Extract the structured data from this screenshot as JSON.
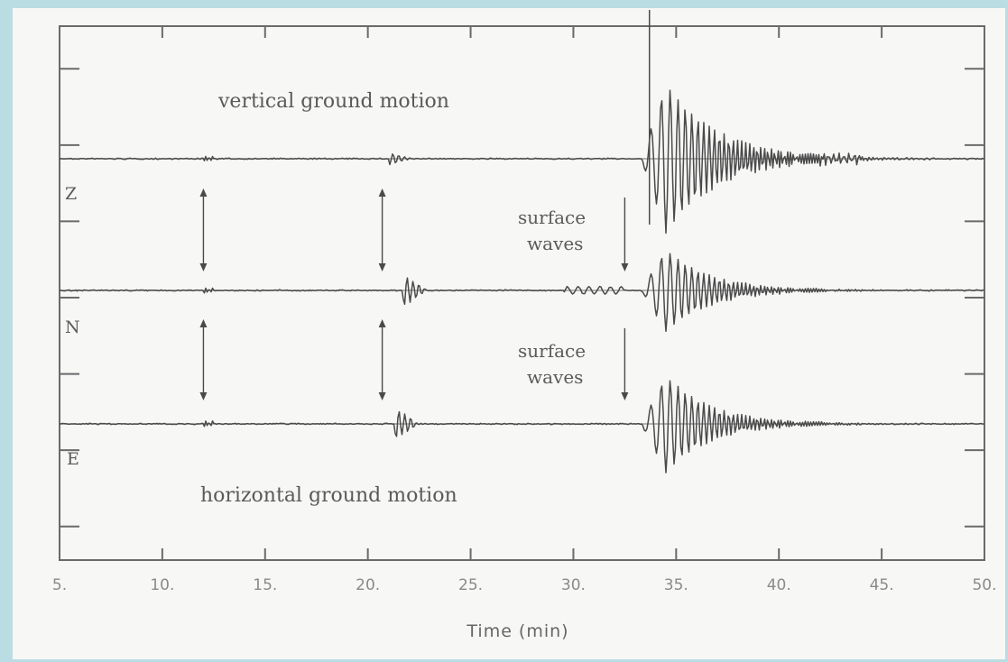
{
  "chart_data": {
    "type": "line",
    "xlabel": "Time  (min)",
    "ylabel": "",
    "xlim": [
      5,
      50
    ],
    "x_ticks": [
      "5.",
      "10.",
      "15.",
      "20.",
      "25.",
      "30.",
      "35.",
      "40.",
      "45.",
      "50."
    ],
    "grid": false,
    "series": [
      {
        "name": "Z",
        "p_arrival": 12.0,
        "s_arrival": 21.0,
        "surface_arrival": 33.3,
        "peak_amplitude": 1.0,
        "surface_decay_end": 40.0
      },
      {
        "name": "N",
        "p_arrival": 12.0,
        "s_arrival": 21.7,
        "surface_arrival": 33.3,
        "peak_amplitude": 0.55,
        "surface_decay_end": 39.0
      },
      {
        "name": "E",
        "p_arrival": 12.0,
        "s_arrival": 21.3,
        "surface_arrival": 33.3,
        "peak_amplitude": 0.65,
        "surface_decay_end": 39.0
      }
    ],
    "annotations": {
      "top": "vertical ground motion",
      "bottom": "horizontal ground motion",
      "surface_1_line1": "surface",
      "surface_1_line2": "waves",
      "surface_2_line1": "surface",
      "surface_2_line2": "waves"
    },
    "colors": {
      "trace": "#4a4a4a",
      "frame": "#6a6a6a",
      "background": "#f7f7f6",
      "page": "#b9dde3"
    }
  }
}
